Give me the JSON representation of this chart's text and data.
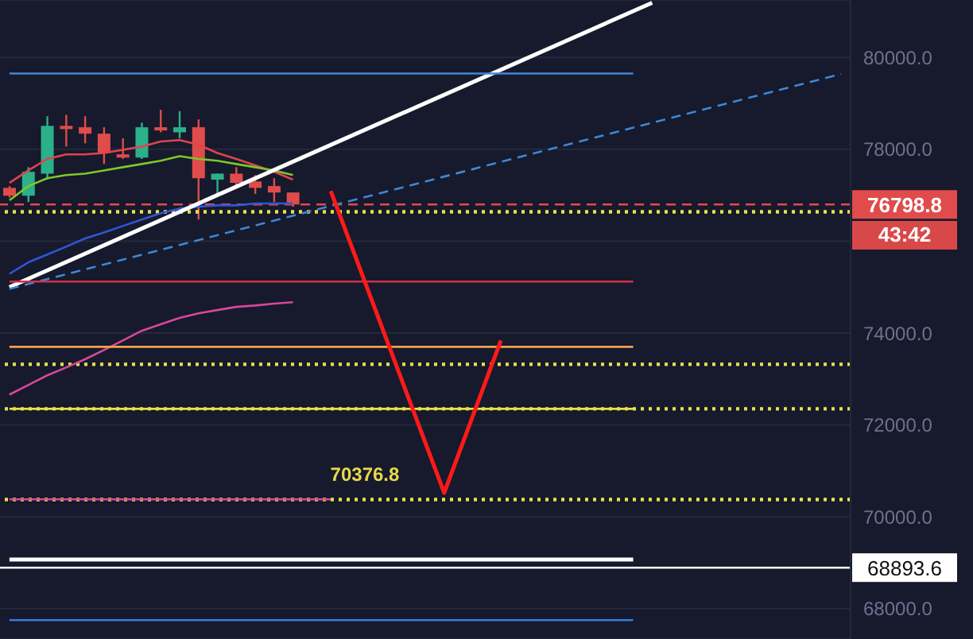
{
  "chart_data": {
    "type": "candlestick",
    "categories": [
      null,
      null,
      null,
      null,
      null,
      null,
      null,
      null,
      null,
      null,
      null,
      null,
      null,
      null,
      null,
      null,
      null,
      null,
      null,
      null,
      null,
      null,
      null,
      null,
      null,
      null,
      null,
      null,
      null,
      null,
      null,
      null,
      null,
      null,
      null,
      null,
      null,
      null,
      null,
      null,
      null,
      null,
      null,
      null,
      null
    ],
    "ohlc": [
      [
        77160,
        77200,
        76950,
        76990
      ],
      [
        76990,
        77610,
        76850,
        77510
      ],
      [
        77470,
        78720,
        77340,
        78510
      ],
      [
        78510,
        78750,
        78060,
        78440
      ],
      [
        78480,
        78720,
        78130,
        78340
      ],
      [
        78340,
        78480,
        77680,
        77920
      ],
      [
        77890,
        78240,
        77790,
        77820
      ],
      [
        77820,
        78580,
        77790,
        78480
      ],
      [
        78480,
        78860,
        78370,
        78410
      ],
      [
        78370,
        78830,
        78240,
        78480
      ],
      [
        78480,
        78650,
        76470,
        77370
      ],
      [
        77340,
        77470,
        76990,
        77470
      ],
      [
        77470,
        77610,
        77200,
        77270
      ],
      [
        77300,
        77440,
        77030,
        77160
      ],
      [
        77200,
        77370,
        76850,
        77060
      ],
      [
        77060,
        77060,
        76750,
        76798.8
      ],
      null,
      null,
      null,
      null,
      null,
      null,
      null,
      null,
      null,
      null,
      null,
      null,
      null,
      null,
      null,
      null,
      null,
      null,
      null,
      null,
      null,
      null,
      null,
      null,
      null,
      null,
      null,
      null,
      null
    ],
    "series": [
      {
        "type": "line",
        "color": "#e0444f",
        "values": [
          77270,
          77540,
          77790,
          77890,
          77890,
          77920,
          77990,
          78060,
          78170,
          78200,
          78100,
          77920,
          77790,
          77650,
          77510,
          77340,
          null,
          null,
          null,
          null,
          null,
          null,
          null,
          null,
          null,
          null,
          null,
          null,
          null,
          null,
          null,
          null,
          null,
          null,
          null,
          null,
          null,
          null,
          null,
          null,
          null,
          null,
          null,
          null,
          null
        ]
      },
      {
        "type": "line",
        "color": "#7ec62b",
        "values": [
          76890,
          77200,
          77370,
          77440,
          77470,
          77540,
          77610,
          77680,
          77750,
          77850,
          77790,
          77750,
          77680,
          77610,
          77540,
          77440,
          null,
          null,
          null,
          null,
          null,
          null,
          null,
          null,
          null,
          null,
          null,
          null,
          null,
          null,
          null,
          null,
          null,
          null,
          null,
          null,
          null,
          null,
          null,
          null,
          null,
          null,
          null,
          null,
          null
        ]
      },
      {
        "type": "line",
        "color": "#2f56d6",
        "values": [
          75290,
          75540,
          75710,
          75880,
          76060,
          76190,
          76330,
          76470,
          76610,
          76710,
          76750,
          76780,
          76780,
          76820,
          76820,
          76820,
          null,
          null,
          null,
          null,
          null,
          null,
          null,
          null,
          null,
          null,
          null,
          null,
          null,
          null,
          null,
          null,
          null,
          null,
          null,
          null,
          null,
          null,
          null,
          null,
          null,
          null,
          null,
          null,
          null
        ]
      },
      {
        "type": "line",
        "color": "#d8479a",
        "values": [
          72660,
          72870,
          73080,
          73250,
          73430,
          73630,
          73840,
          74050,
          74190,
          74330,
          74430,
          74500,
          74570,
          74600,
          74640,
          74670,
          null,
          null,
          null,
          null,
          null,
          null,
          null,
          null,
          null,
          null,
          null,
          null,
          null,
          null,
          null,
          null,
          null,
          null,
          null,
          null,
          null,
          null,
          null,
          null,
          null,
          null,
          null,
          null,
          null
        ]
      },
      {
        "type": "line",
        "color": "#ffffff",
        "values": [
          75000,
          null,
          null,
          null,
          null,
          null,
          null,
          null,
          null,
          null,
          null,
          null,
          null,
          null,
          null,
          null,
          null,
          null,
          null,
          null,
          null,
          null,
          null,
          null,
          null,
          null,
          null,
          null,
          null,
          null,
          null,
          null,
          null,
          null,
          81190,
          null,
          null,
          null,
          null,
          null,
          null,
          null,
          null,
          null,
          null
        ]
      },
      {
        "type": "line",
        "color": "#3f86d8",
        "line_style": "dashed",
        "values": [
          74960,
          null,
          null,
          null,
          null,
          null,
          null,
          null,
          null,
          null,
          null,
          null,
          null,
          null,
          null,
          null,
          null,
          null,
          null,
          null,
          null,
          null,
          null,
          null,
          null,
          null,
          null,
          null,
          null,
          null,
          null,
          null,
          null,
          null,
          null,
          null,
          null,
          null,
          null,
          null,
          null,
          null,
          null,
          null,
          79640
        ]
      },
      {
        "type": "line",
        "color": "#3f86d8",
        "values": [
          79650,
          null,
          null,
          null,
          null,
          null,
          null,
          null,
          null,
          null,
          null,
          null,
          null,
          null,
          null,
          null,
          null,
          null,
          null,
          null,
          null,
          null,
          null,
          null,
          null,
          null,
          null,
          null,
          null,
          null,
          null,
          null,
          null,
          79650,
          null,
          null,
          null,
          null,
          null,
          null,
          null,
          null,
          null,
          null,
          null
        ]
      },
      {
        "type": "line",
        "color": "#d12f45",
        "values": [
          75120,
          null,
          null,
          null,
          null,
          null,
          null,
          null,
          null,
          null,
          null,
          null,
          null,
          null,
          null,
          null,
          null,
          null,
          null,
          null,
          null,
          null,
          null,
          null,
          null,
          null,
          null,
          null,
          null,
          null,
          null,
          null,
          null,
          75120,
          null,
          null,
          null,
          null,
          null,
          null,
          null,
          null,
          null,
          null,
          null
        ]
      },
      {
        "type": "line",
        "color": "#f0a050",
        "values": [
          73700,
          null,
          null,
          null,
          null,
          null,
          null,
          null,
          null,
          null,
          null,
          null,
          null,
          null,
          null,
          null,
          null,
          null,
          null,
          null,
          null,
          null,
          null,
          null,
          null,
          null,
          null,
          null,
          null,
          null,
          null,
          null,
          null,
          73700,
          null,
          null,
          null,
          null,
          null,
          null,
          null,
          null,
          null,
          null,
          null
        ]
      },
      {
        "type": "line",
        "color": "#e8e04a",
        "values": [
          72350,
          null,
          null,
          null,
          null,
          null,
          null,
          null,
          null,
          null,
          null,
          null,
          null,
          null,
          null,
          null,
          null,
          null,
          null,
          null,
          null,
          null,
          null,
          null,
          null,
          null,
          null,
          null,
          null,
          null,
          null,
          null,
          null,
          72350,
          null,
          null,
          null,
          null,
          null,
          null,
          null,
          null,
          null,
          null,
          null
        ]
      },
      {
        "type": "line",
        "color": "#d8479a",
        "values": [
          70380,
          null,
          null,
          null,
          null,
          null,
          null,
          null,
          null,
          null,
          null,
          null,
          null,
          null,
          null,
          null,
          null,
          70380,
          null,
          null,
          null,
          null,
          null,
          null,
          null,
          null,
          null,
          null,
          null,
          null,
          null,
          null,
          null,
          null,
          null,
          null,
          null,
          null,
          null,
          null,
          null,
          null,
          null,
          null,
          null
        ]
      },
      {
        "type": "line",
        "color": "#ffffff",
        "values": [
          69070,
          null,
          null,
          null,
          null,
          null,
          null,
          null,
          null,
          null,
          null,
          null,
          null,
          null,
          null,
          null,
          null,
          null,
          null,
          null,
          null,
          null,
          null,
          null,
          null,
          null,
          null,
          null,
          null,
          null,
          null,
          null,
          null,
          69070,
          null,
          null,
          null,
          null,
          null,
          null,
          null,
          null,
          null,
          null,
          null
        ]
      },
      {
        "type": "line",
        "color": "#2f7ee0",
        "values": [
          67750,
          null,
          null,
          null,
          null,
          null,
          null,
          null,
          null,
          null,
          null,
          null,
          null,
          null,
          null,
          null,
          null,
          null,
          null,
          null,
          null,
          null,
          null,
          null,
          null,
          null,
          null,
          null,
          null,
          null,
          null,
          null,
          null,
          67750,
          null,
          null,
          null,
          null,
          null,
          null,
          null,
          null,
          null,
          null,
          null
        ]
      },
      {
        "type": "line",
        "color": "#ff1a1a",
        "values": [
          null,
          null,
          null,
          null,
          null,
          null,
          null,
          null,
          null,
          null,
          null,
          null,
          null,
          null,
          null,
          null,
          null,
          77090,
          null,
          null,
          null,
          null,
          null,
          70520,
          null,
          null,
          73840,
          null,
          null,
          null,
          null,
          null,
          null,
          null,
          null,
          null,
          null,
          null,
          null,
          null,
          null,
          null,
          null,
          null,
          null
        ]
      }
    ],
    "ref_lines": [
      {
        "axis": "y",
        "value": 76798.8,
        "label": "76798.8",
        "color": "#e04b4b",
        "line_style": "dashed"
      },
      {
        "axis": "y",
        "value": 76640,
        "color": "#e8e04a",
        "line_style": "dotted"
      },
      {
        "axis": "y",
        "value": 73320,
        "color": "#e8e04a",
        "line_style": "dotted"
      },
      {
        "axis": "y",
        "value": 72350,
        "color": "#e8e04a",
        "line_style": "dotted"
      },
      {
        "axis": "y",
        "value": 70376.8,
        "color": "#e8e04a",
        "line_style": "dotted"
      },
      {
        "axis": "y",
        "value": 68893.6,
        "label": "68893.6",
        "color": "#ffffff",
        "line_style": "solid"
      }
    ],
    "annotations": [
      "43:42",
      {
        "text": "70376.8",
        "y": 70376.8
      }
    ],
    "ylim": [
      67340,
      81250
    ],
    "yticks": [
      {
        "value": 68000,
        "label": "68000.0"
      },
      {
        "value": 70000,
        "label": "70000.0"
      },
      {
        "value": 72000,
        "label": "72000.0"
      },
      {
        "value": 74000,
        "label": "74000.0"
      },
      {
        "value": 76000,
        "label": null
      },
      {
        "value": 78000,
        "label": "78000.0"
      },
      {
        "value": 80000,
        "label": "80000.0"
      }
    ],
    "grid": "y",
    "tick_labels": "y"
  }
}
